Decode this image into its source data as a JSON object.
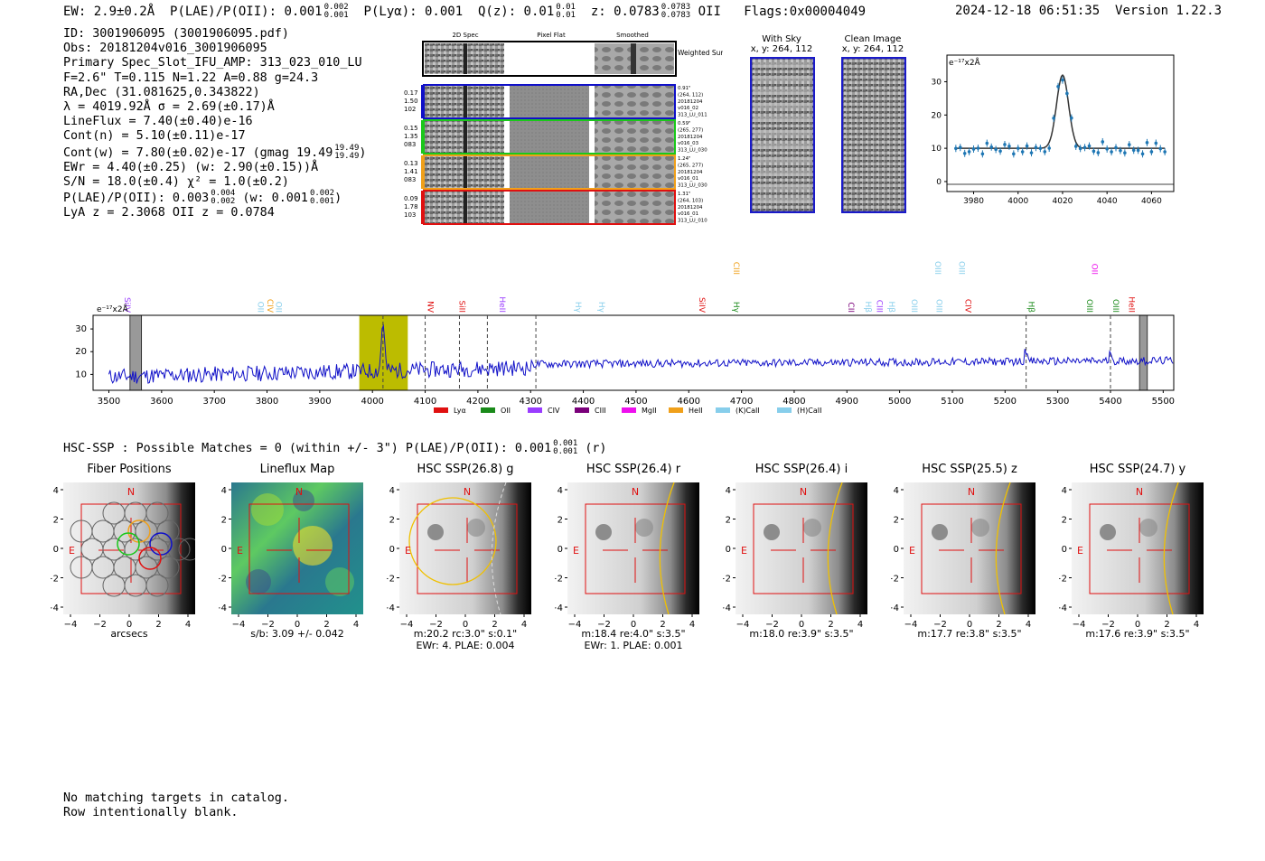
{
  "header": {
    "ew": "EW: 2.9±0.2Å",
    "plae_label": "P(LAE)/P(OII): 0.001",
    "plae_hi": "0.002",
    "plae_lo": "0.001",
    "plya": "P(Lyα): 0.001",
    "qz_label": "Q(z): 0.01",
    "qz_hi": "0.01",
    "qz_lo": "0.01",
    "z_label": "z: 0.0783",
    "z_hi": "0.0783",
    "z_lo": "0.0783",
    "z_line": "OII",
    "flags": "Flags:0x00004049",
    "timestamp": "2024-12-18 06:51:35",
    "version": "Version 1.22.3"
  },
  "info": {
    "id": "ID: 3001906095 (3001906095.pdf)",
    "obs": "Obs: 20181204v016_3001906095",
    "primary": "Primary Spec_Slot_IFU_AMP: 313_023_010_LU",
    "fwhm": "F=2.6\"  T=0.115  N=1.22  A=0.88  g=24.3",
    "radec": "RA,Dec (31.081625,0.343822)",
    "lambda": "λ = 4019.92Å  σ = 2.69(±0.17)Å",
    "lineflux": "LineFlux = 7.40(±0.40)e-16",
    "contn": "Cont(n) = 5.10(±0.11)e-17",
    "contw": "Cont(w) = 7.80(±0.02)e-17 (gmag 19.49",
    "contw_hi": "19.49",
    "contw_lo": "19.49",
    "ewr": "EWr = 4.40(±0.25) (w: 2.90(±0.15))Å",
    "sn": "S/N = 18.0(±0.4)  χ² = 1.0(±0.2)",
    "plae": "P(LAE)/P(OII): 0.003",
    "plae_hi": "0.004",
    "plae_lo": "0.002",
    "plae_w": "(w: 0.001",
    "plae_w_hi": "0.002",
    "plae_w_lo": "0.001",
    "lya": "LyA z = 2.3068  OII z = 0.0784"
  },
  "cutouts": {
    "col_2d": "2D Spec",
    "col_flat": "Pixel Flat",
    "col_smooth": "Smoothed",
    "weighted": "Weighted Sum",
    "rows": [
      {
        "left": [
          "0.17",
          "1.50",
          "102"
        ],
        "right": [
          "0.91\"",
          "(264, 112)",
          "20181204",
          "v016_02",
          "313_LU_011"
        ],
        "color": "#1010c8"
      },
      {
        "left": [
          "0.15",
          "1.35",
          "083"
        ],
        "right": [
          "0.59\"",
          "(265, 277)",
          "20181204",
          "v016_03",
          "313_LU_030"
        ],
        "color": "#1ac81a"
      },
      {
        "left": [
          "0.13",
          "1.41",
          "083"
        ],
        "right": [
          "1.24\"",
          "(265, 277)",
          "20181204",
          "v016_01",
          "313_LU_030"
        ],
        "color": "#f0a01a"
      },
      {
        "left": [
          "0.09",
          "1.78",
          "103"
        ],
        "right": [
          "1.31\"",
          "(264, 103)",
          "20181204",
          "v016_01",
          "313_LU_010"
        ],
        "color": "#e01010"
      }
    ],
    "with_sky": "With Sky",
    "with_sky_xy": "x, y: 264, 112",
    "clean": "Clean Image",
    "clean_xy": "x, y: 264, 112"
  },
  "zoom_plot": {
    "ylabel": "e⁻¹⁷x2Å",
    "yticks": [
      "0",
      "10",
      "20",
      "30"
    ],
    "xticks": [
      "3980",
      "4000",
      "4020",
      "4040",
      "4060"
    ]
  },
  "spectrum": {
    "ylabel": "e⁻¹⁷x2Å",
    "yticks": [
      "10",
      "20",
      "30"
    ],
    "xticks": [
      "3500",
      "3600",
      "3700",
      "3800",
      "3900",
      "4000",
      "4100",
      "4200",
      "4300",
      "4400",
      "4500",
      "4600",
      "4700",
      "4800",
      "4900",
      "5000",
      "5100",
      "5200",
      "5300",
      "5400",
      "5500"
    ],
    "lines": [
      {
        "label": "SiIV",
        "color": "#9a3cff",
        "wave": 3525,
        "row": 1
      },
      {
        "label": "OII",
        "color": "#87ceeb",
        "wave": 3778,
        "row": 1
      },
      {
        "label": "CIV",
        "color": "#f0a01a",
        "wave": 3796,
        "row": 1
      },
      {
        "label": "OII",
        "color": "#87ceeb",
        "wave": 3812,
        "row": 1
      },
      {
        "label": "NV",
        "color": "#e01010",
        "wave": 4100,
        "row": 1
      },
      {
        "label": "SiII",
        "color": "#e01010",
        "wave": 4160,
        "row": 1
      },
      {
        "label": "HeII",
        "color": "#9a3cff",
        "wave": 4236,
        "row": 1
      },
      {
        "label": "Hγ",
        "color": "#87ceeb",
        "wave": 4380,
        "row": 1
      },
      {
        "label": "Hγ",
        "color": "#87ceeb",
        "wave": 4425,
        "row": 1
      },
      {
        "label": "SiIV",
        "color": "#e01010",
        "wave": 4615,
        "row": 1
      },
      {
        "label": "CIII",
        "color": "#f0a01a",
        "wave": 4680,
        "row": 0
      },
      {
        "label": "Hγ",
        "color": "#1a8a1a",
        "wave": 4680,
        "row": 1
      },
      {
        "label": "CII",
        "color": "#7a007a",
        "wave": 4898,
        "row": 1
      },
      {
        "label": "Hβ",
        "color": "#87ceeb",
        "wave": 4930,
        "row": 1
      },
      {
        "label": "CIII",
        "color": "#9a3cff",
        "wave": 4952,
        "row": 1
      },
      {
        "label": "Hβ",
        "color": "#87ceeb",
        "wave": 4975,
        "row": 1
      },
      {
        "label": "OIII",
        "color": "#87ceeb",
        "wave": 5018,
        "row": 1
      },
      {
        "label": "OIII",
        "color": "#87ceeb",
        "wave": 5062,
        "row": 0
      },
      {
        "label": "OIII",
        "color": "#87ceeb",
        "wave": 5065,
        "row": 1
      },
      {
        "label": "OIII",
        "color": "#87ceeb",
        "wave": 5108,
        "row": 0
      },
      {
        "label": "CIV",
        "color": "#e01010",
        "wave": 5120,
        "row": 1
      },
      {
        "label": "Hβ",
        "color": "#1a8a1a",
        "wave": 5240,
        "row": 1
      },
      {
        "label": "OIII",
        "color": "#1a8a1a",
        "wave": 5350,
        "row": 1
      },
      {
        "label": "OII",
        "color": "#ee10ee",
        "wave": 5360,
        "row": 0
      },
      {
        "label": "OIII",
        "color": "#1a8a1a",
        "wave": 5400,
        "row": 1
      },
      {
        "label": "HeII",
        "color": "#e01010",
        "wave": 5430,
        "row": 1
      }
    ],
    "legend": [
      {
        "label": "Lyα",
        "color": "#e01010"
      },
      {
        "label": "OII",
        "color": "#1a8a1a"
      },
      {
        "label": "CIV",
        "color": "#9a3cff"
      },
      {
        "label": "CIII",
        "color": "#7a007a"
      },
      {
        "label": "MgII",
        "color": "#ee10ee"
      },
      {
        "label": "HeII",
        "color": "#f0a01a"
      },
      {
        "label": "(K)CaII",
        "color": "#87ceeb"
      },
      {
        "label": "(H)CaII",
        "color": "#87ceeb"
      }
    ]
  },
  "hsc": {
    "summary": "HSC-SSP : Possible Matches = 0 (within +/- 3\")  P(LAE)/P(OII): 0.001",
    "summary_hi": "0.001",
    "summary_lo": "0.001",
    "summary_band": "(r)",
    "panels": [
      {
        "title": "Fiber Positions",
        "cap1": "arcsecs",
        "cap2": ""
      },
      {
        "title": "Lineflux Map",
        "cap1": "s/b: 3.09 +/- 0.042",
        "cap2": ""
      },
      {
        "title": "HSC SSP(26.8) g",
        "cap1": "m:20.2 rc:3.0\"  s:0.1\"",
        "cap2": "EWr: 4. PLAE: 0.004"
      },
      {
        "title": "HSC SSP(26.4) r",
        "cap1": "m:18.4  re:4.0\"  s:3.5\"",
        "cap2": "EWr: 1. PLAE: 0.001"
      },
      {
        "title": "HSC SSP(26.4) i",
        "cap1": "m:18.0  re:3.9\"  s:3.5\"",
        "cap2": ""
      },
      {
        "title": "HSC SSP(25.5) z",
        "cap1": "m:17.7  re:3.8\"  s:3.5\"",
        "cap2": ""
      },
      {
        "title": "HSC SSP(24.7) y",
        "cap1": "m:17.6  re:3.9\"  s:3.5\"",
        "cap2": ""
      }
    ],
    "ticks": [
      "4",
      "2",
      "0",
      "−2",
      "−4"
    ],
    "xticks": [
      "−4",
      "−2",
      "0",
      "2",
      "4"
    ],
    "north": "N",
    "east": "E"
  },
  "footer": {
    "line1": "No matching targets in catalog.",
    "line2": "Row intentionally blank."
  }
}
